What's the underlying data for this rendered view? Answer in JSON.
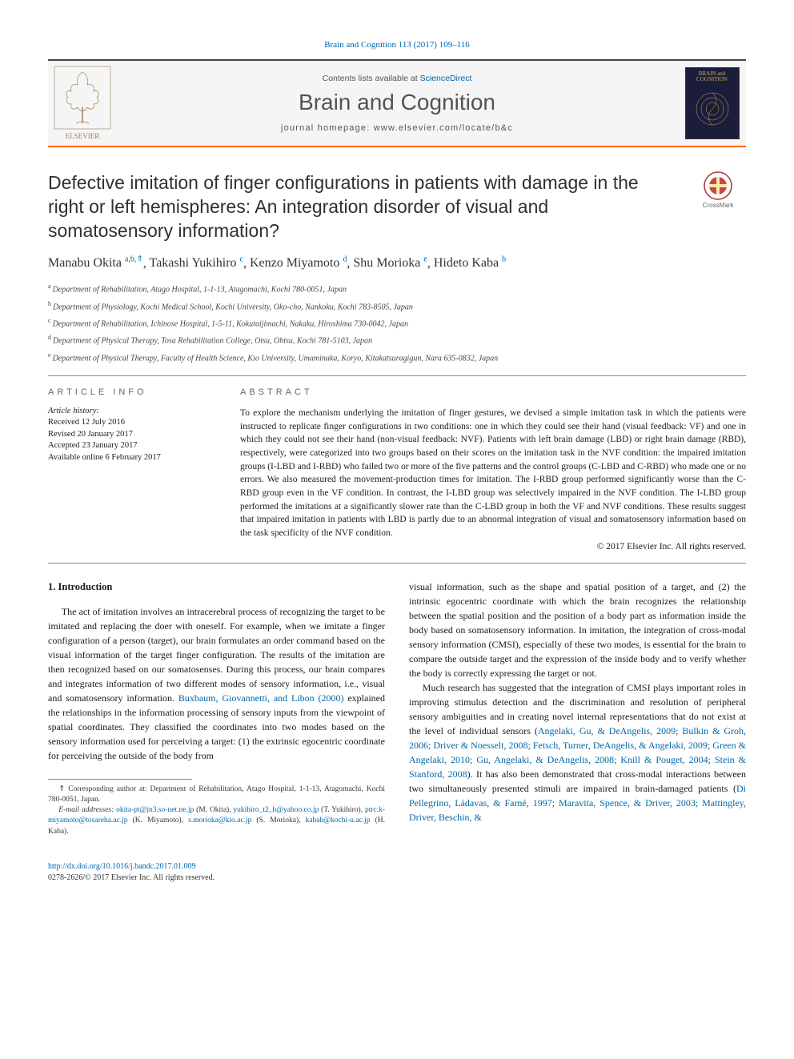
{
  "citation": "Brain and Cognition 113 (2017) 109–116",
  "header": {
    "sciencedirect_prefix": "Contents lists available at ",
    "sciencedirect_link": "ScienceDirect",
    "journal_title": "Brain and Cognition",
    "homepage": "journal homepage: www.elsevier.com/locate/b&c",
    "publisher_name": "ELSEVIER",
    "cover_title1": "BRAIN and",
    "cover_title2": "COGNITION"
  },
  "article": {
    "title": "Defective imitation of finger configurations in patients with damage in the right or left hemispheres: An integration disorder of visual and somatosensory information?",
    "crossmark_label": "CrossMark"
  },
  "authors": [
    {
      "name": "Manabu Okita",
      "sup": "a,b,",
      "star": "⇑"
    },
    {
      "name": "Takashi Yukihiro",
      "sup": "c"
    },
    {
      "name": "Kenzo Miyamoto",
      "sup": "d"
    },
    {
      "name": "Shu Morioka",
      "sup": "e"
    },
    {
      "name": "Hideto Kaba",
      "sup": "b"
    }
  ],
  "affiliations": [
    {
      "sup": "a",
      "text": "Department of Rehabilitation, Atago Hospital, 1-1-13, Atagomachi, Kochi 780-0051, Japan"
    },
    {
      "sup": "b",
      "text": "Department of Physiology, Kochi Medical School, Kochi University, Oko-cho, Nankoku, Kochi 783-8505, Japan"
    },
    {
      "sup": "c",
      "text": "Department of Rehabilitation, Ichinose Hospital, 1-5-11, Kokutaijimachi, Nakaku, Hiroshima 730-0042, Japan"
    },
    {
      "sup": "d",
      "text": "Department of Physical Therapy, Tosa Rehabilitation College, Otsu, Ohtsu, Kochi 781-5103, Japan"
    },
    {
      "sup": "e",
      "text": "Department of Physical Therapy, Faculty of Health Science, Kio University, Umaminaka, Koryo, Kitakatsuragigun, Nara 635-0832, Japan"
    }
  ],
  "info": {
    "head": "ARTICLE INFO",
    "history_label": "Article history:",
    "received": "Received 12 July 2016",
    "revised": "Revised 20 January 2017",
    "accepted": "Accepted 23 January 2017",
    "online": "Available online 6 February 2017"
  },
  "abstract": {
    "head": "ABSTRACT",
    "text": "To explore the mechanism underlying the imitation of finger gestures, we devised a simple imitation task in which the patients were instructed to replicate finger configurations in two conditions: one in which they could see their hand (visual feedback: VF) and one in which they could not see their hand (non-visual feedback: NVF). Patients with left brain damage (LBD) or right brain damage (RBD), respectively, were categorized into two groups based on their scores on the imitation task in the NVF condition: the impaired imitation groups (I-LBD and I-RBD) who failed two or more of the five patterns and the control groups (C-LBD and C-RBD) who made one or no errors. We also measured the movement-production times for imitation. The I-RBD group performed significantly worse than the C-RBD group even in the VF condition. In contrast, the I-LBD group was selectively impaired in the NVF condition. The I-LBD group performed the imitations at a significantly slower rate than the C-LBD group in both the VF and NVF conditions. These results suggest that impaired imitation in patients with LBD is partly due to an abnormal integration of visual and somatosensory information based on the task specificity of the NVF condition.",
    "copyright": "© 2017 Elsevier Inc. All rights reserved."
  },
  "body": {
    "intro_head": "1. Introduction",
    "col1_p1a": "The act of imitation involves an intracerebral process of recognizing the target to be imitated and replacing the doer with oneself. For example, when we imitate a finger configuration of a person (target), our brain formulates an order command based on the visual information of the target finger configuration. The results of the imitation are then recognized based on our somatosenses. During this process, our brain compares and integrates information of two different modes of sensory information, i.e., visual and somatosensory information. ",
    "col1_ref1": "Buxbaum, Giovannetti, and Libon (2000)",
    "col1_p1b": " explained the relationships in the information processing of sensory inputs from the viewpoint of spatial coordinates. They classified the coordinates into two modes based on the sensory information used for perceiving a target: (1) the extrinsic egocentric coordinate for perceiving the outside of the body from",
    "col2_p1": "visual information, such as the shape and spatial position of a target, and (2) the intrinsic egocentric coordinate with which the brain recognizes the relationship between the spatial position and the position of a body part as information inside the body based on somatosensory information. In imitation, the integration of cross-modal sensory information (CMSI), especially of these two modes, is essential for the brain to compare the outside target and the expression of the inside body and to verify whether the body is correctly expressing the target or not.",
    "col2_p2a": "Much research has suggested that the integration of CMSI plays important roles in improving stimulus detection and the discrimination and resolution of peripheral sensory ambiguities and in creating novel internal representations that do not exist at the level of individual sensors (",
    "col2_refs1": "Angelaki, Gu, & DeAngelis, 2009; Bulkin & Groh, 2006; Driver & Noesselt, 2008; Fetsch, Turner, DeAngelis, & Angelaki, 2009; Green & Angelaki, 2010; Gu, Angelaki, & DeAngelis, 2008; Knill & Pouget, 2004; Stein & Stanford, 2008",
    "col2_p2b": "). It has also been demonstrated that cross-modal interactions between two simultaneously presented stimuli are impaired in brain-damaged patients (",
    "col2_refs2": "Di Pellegrino, Làdavas, & Farné, 1997; Maravita, Spence, & Driver, 2003; Mattingley, Driver, Beschin, &"
  },
  "footnote": {
    "corr": "⇑ Corresponding author at: Department of Rehabilitation, Atago Hospital, 1-1-13, Atagomachi, Kochi 780-0051, Japan.",
    "email_label": "E-mail addresses: ",
    "emails": [
      {
        "addr": "okita-pt@jn3.so-net.ne.jp",
        "who": " (M. Okita), "
      },
      {
        "addr": "yukihiro_t2_h@yahoo.co.jp",
        "who": " (T. Yukihiro), "
      },
      {
        "addr": "ptrc.k-miyamoto@tosareha.ac.jp",
        "who": " (K. Miyamoto), "
      },
      {
        "addr": "s.morioka@kio.ac.jp",
        "who": " (S. Morioka), "
      },
      {
        "addr": "kabah@kochi-u.ac.jp",
        "who": " (H. Kaba)."
      }
    ]
  },
  "doi": {
    "url": "http://dx.doi.org/10.1016/j.bandc.2017.01.009",
    "issn_line": "0278-2626/© 2017 Elsevier Inc. All rights reserved."
  },
  "colors": {
    "accent_orange": "#ff6b00",
    "link_blue": "#0066a8",
    "cover_bg": "#1a1e3a",
    "cover_gold": "#d4a855"
  }
}
